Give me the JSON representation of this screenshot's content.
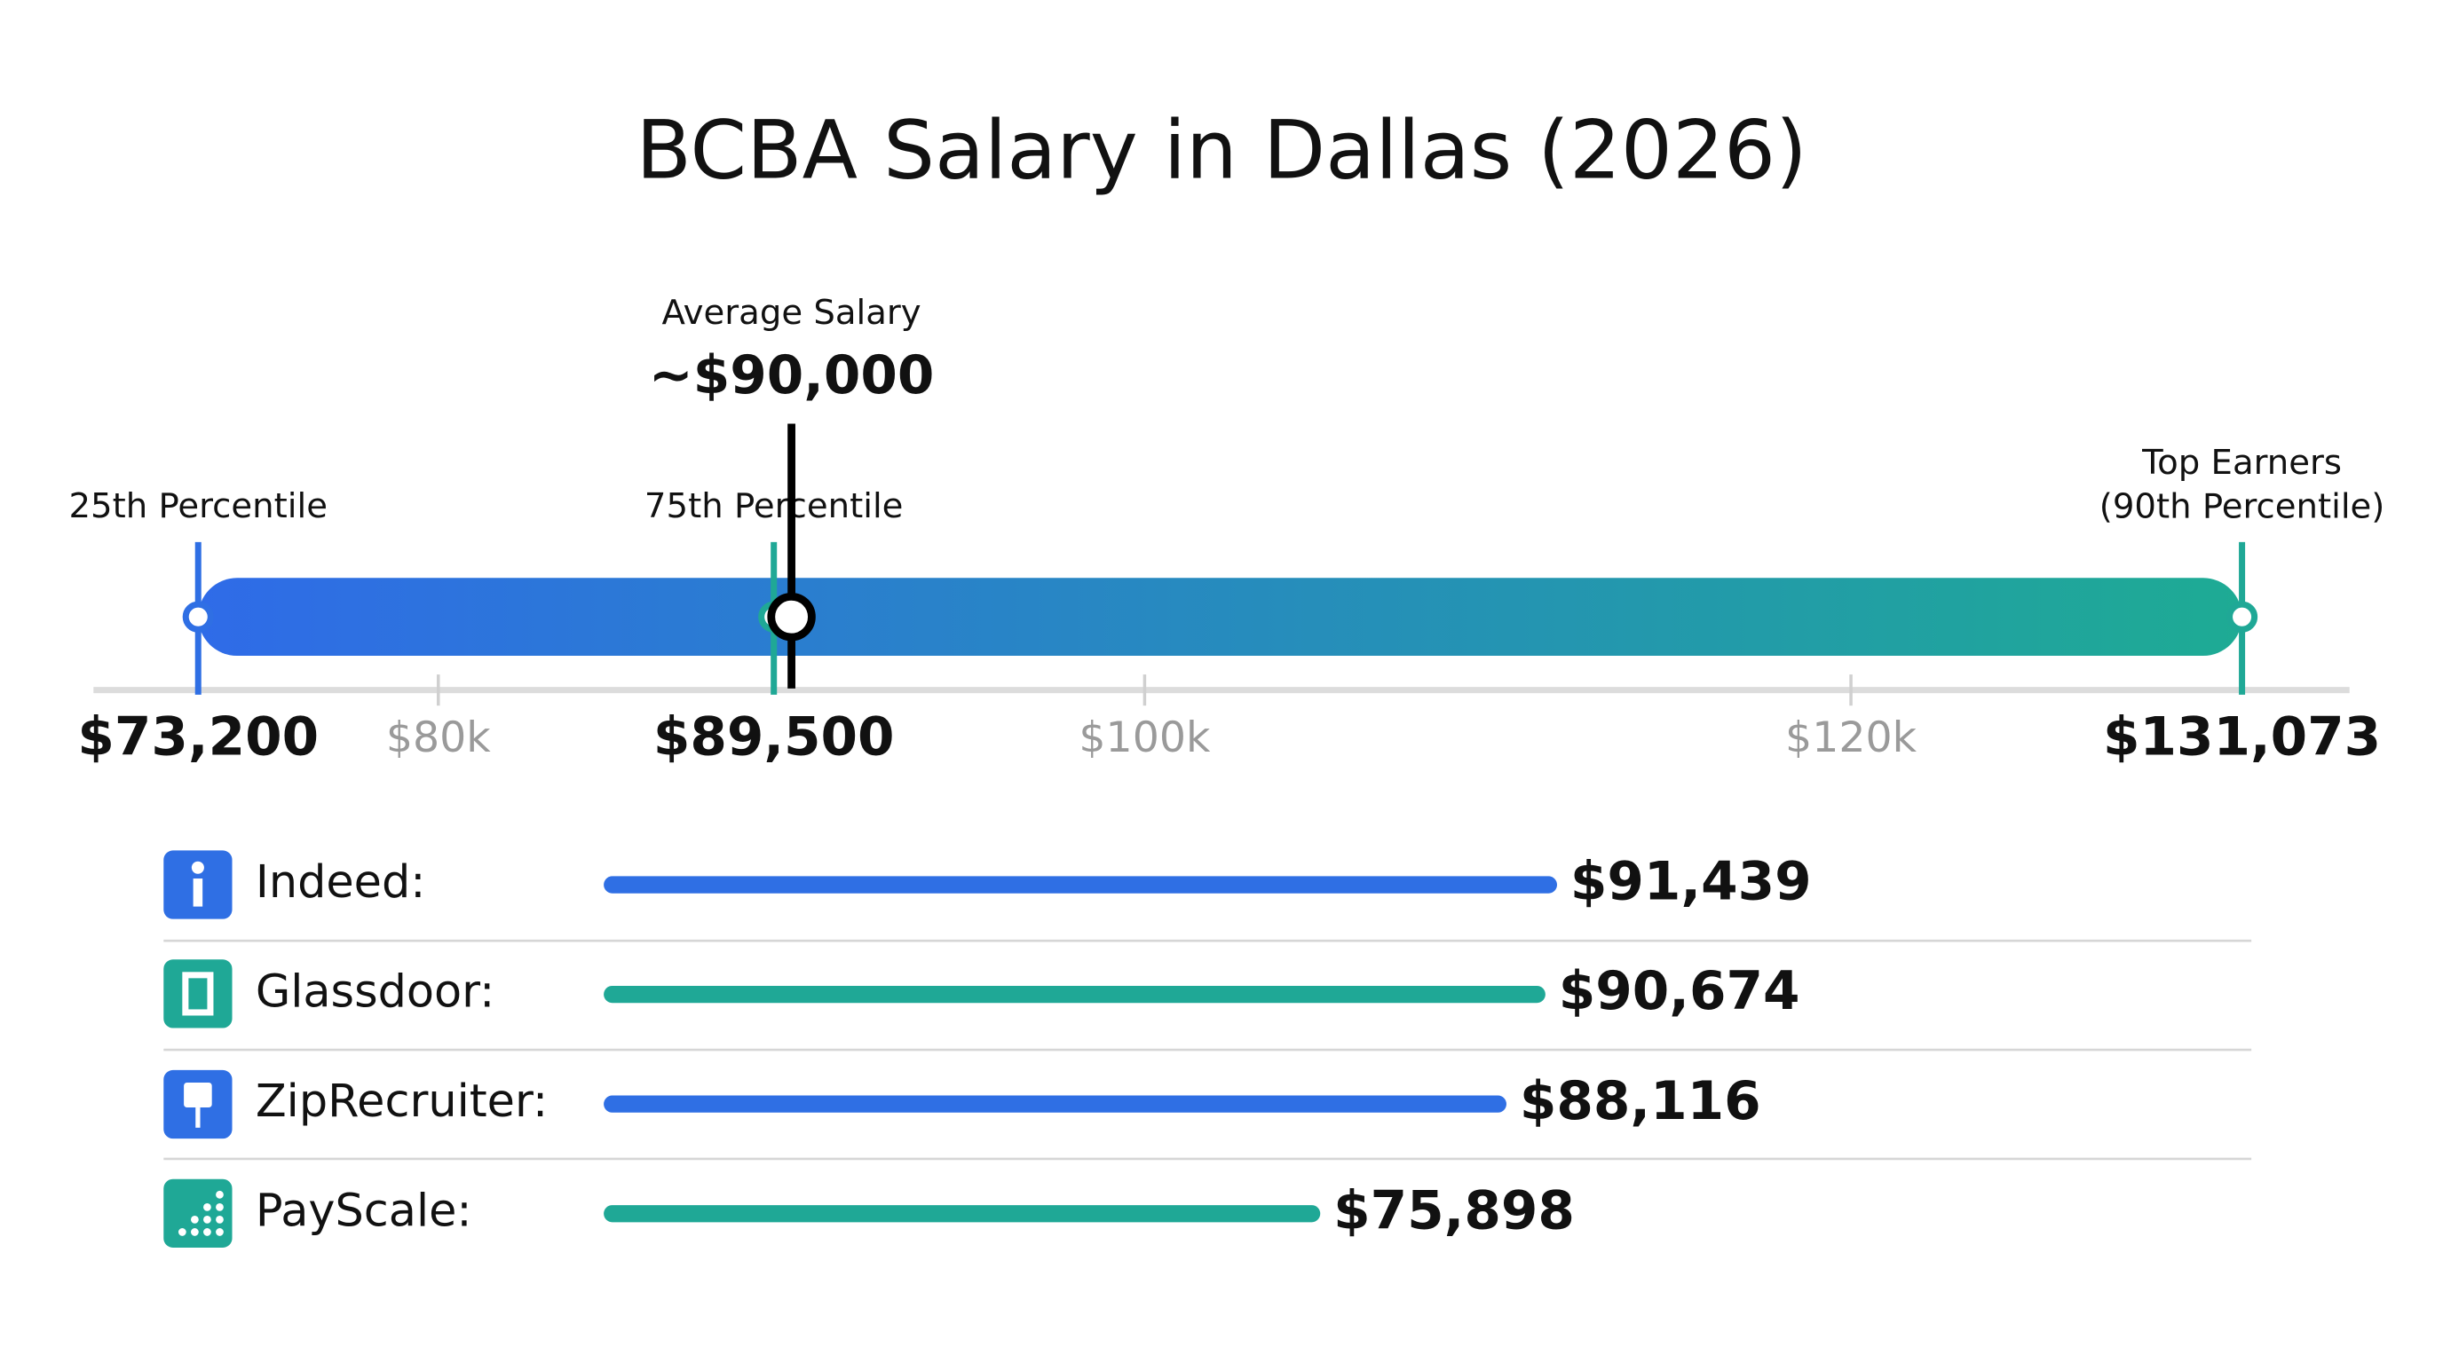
{
  "chart_data": [
    {
      "type": "range",
      "title": "BCBA Salary in Dallas (2026)",
      "categories": [
        "25th Percentile",
        "75th Percentile",
        "Top Earners\n(90th Percentile)"
      ],
      "values": [
        73200,
        89500,
        131073
      ],
      "value_labels": [
        "$73,200",
        "$89,500",
        "$131,073"
      ],
      "colors": [
        "#2f6fe4",
        "#1fa896",
        "#1fa896"
      ],
      "average": {
        "label": "Average Salary",
        "value": 90000,
        "value_label": "~$90,000",
        "color": "#000000"
      },
      "xlim": [
        72000,
        132000
      ],
      "xticks": [
        {
          "value": 80000,
          "label": "$80k"
        },
        {
          "value": 100000,
          "label": "$100k"
        },
        {
          "value": 120000,
          "label": "$120k"
        }
      ]
    },
    {
      "type": "hbar",
      "categories": [
        "Indeed:",
        "Glassdoor:",
        "ZipRecruiter:",
        "PayScale:"
      ],
      "values": [
        91439,
        90674,
        88116,
        75898
      ],
      "value_labels": [
        "$91,439",
        "$90,674",
        "$88,116",
        "$75,898"
      ],
      "colors": [
        "#2f6fe4",
        "#1fa896",
        "#2f6fe4",
        "#1fa896"
      ],
      "xlim": [
        30000,
        130000
      ]
    }
  ]
}
